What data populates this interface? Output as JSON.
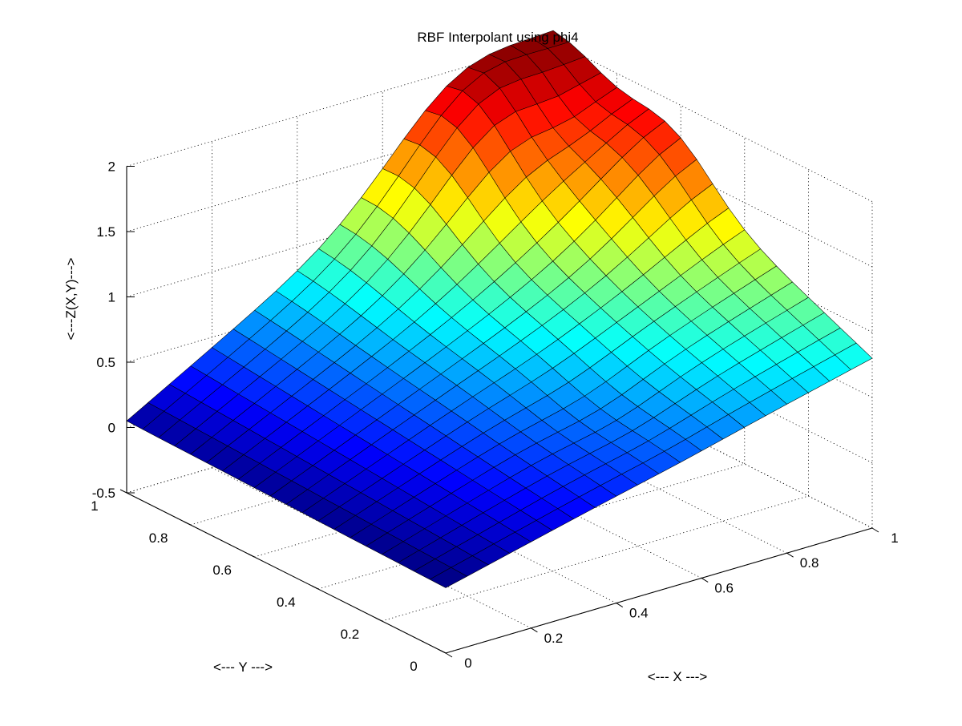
{
  "chart_data": {
    "type": "surface",
    "title": "RBF Interpolant using phi4",
    "xlabel": "<--- X --->",
    "ylabel": "<--- Y --->",
    "zlabel": "<---Z(X,Y)--->",
    "xlim": [
      0,
      1
    ],
    "ylim": [
      0,
      1
    ],
    "zlim": [
      -0.5,
      2
    ],
    "x_ticks": [
      "0",
      "0.2",
      "0.4",
      "0.6",
      "0.8",
      "1"
    ],
    "y_ticks": [
      "0",
      "0.2",
      "0.4",
      "0.6",
      "0.8",
      "1"
    ],
    "z_ticks": [
      "-0.5",
      "0",
      "0.5",
      "1",
      "1.5",
      "2"
    ],
    "grid": true,
    "colormap": "jet",
    "mesh_size": [
      20,
      20
    ],
    "surface_description": "Smooth sloped surface: near 0 along the front edges (x=0 and y=0), rising toward the back corner; peak value about 2.0 near x=0.8, y=0.9; secondary hump about 1.5 near x=1, y=0.65; value about 0.8 at the right corner (x=1, y=0)."
  }
}
